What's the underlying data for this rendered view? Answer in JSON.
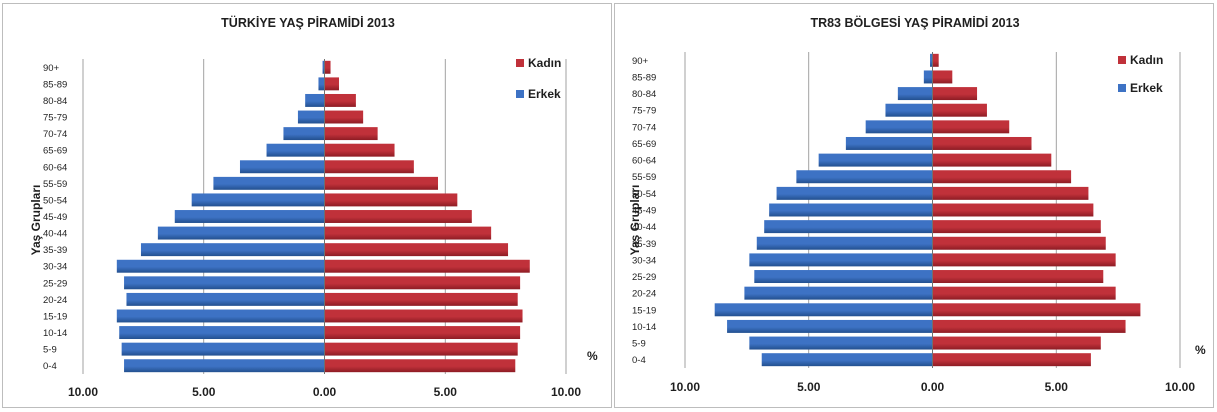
{
  "legend": {
    "female": "Kadın",
    "male": "Erkek"
  },
  "colors": {
    "female": "#c0313a",
    "female_dark": "#8d1c24",
    "male": "#3d72c4",
    "male_dark": "#23508f"
  },
  "unit": "%",
  "ylabel": "Yaş Grupları",
  "chart_data": [
    {
      "type": "bar",
      "orientation": "horizontal-pyramid",
      "title": "TÜRKİYE YAŞ PİRAMİDİ 2013",
      "ylabel": "Yaş Grupları",
      "xlabel": "%",
      "xlim": [
        -10,
        10
      ],
      "xticks": [
        -10,
        -5,
        0,
        5,
        10
      ],
      "xtick_labels": [
        "10.00",
        "5.00",
        "0.00",
        "5.00",
        "10.00"
      ],
      "grid": true,
      "legend_position": "top-right",
      "categories": [
        "0-4",
        "5-9",
        "10-14",
        "15-19",
        "20-24",
        "25-29",
        "30-34",
        "35-39",
        "40-44",
        "45-49",
        "50-54",
        "55-59",
        "60-64",
        "65-69",
        "70-74",
        "75-79",
        "80-84",
        "85-89",
        "90+"
      ],
      "series": [
        {
          "name": "Kadın",
          "values": [
            7.9,
            8.0,
            8.1,
            8.2,
            8.0,
            8.1,
            8.5,
            7.6,
            6.9,
            6.1,
            5.5,
            4.7,
            3.7,
            2.9,
            2.2,
            1.6,
            1.3,
            0.6,
            0.25
          ]
        },
        {
          "name": "Erkek",
          "values": [
            8.3,
            8.4,
            8.5,
            8.6,
            8.2,
            8.3,
            8.6,
            7.6,
            6.9,
            6.2,
            5.5,
            4.6,
            3.5,
            2.4,
            1.7,
            1.1,
            0.8,
            0.25,
            0.08
          ]
        }
      ]
    },
    {
      "type": "bar",
      "orientation": "horizontal-pyramid",
      "title": "TR83 BÖLGESİ YAŞ PİRAMİDİ 2013",
      "ylabel": "Yaş Grupları",
      "xlabel": "%",
      "xlim": [
        -10,
        10
      ],
      "xticks": [
        -10,
        -5,
        0,
        5,
        10
      ],
      "xtick_labels": [
        "10.00",
        "5.00",
        "0.00",
        "5.00",
        "10.00"
      ],
      "grid": true,
      "legend_position": "top-right",
      "categories": [
        "0-4",
        "5-9",
        "10-14",
        "15-19",
        "20-24",
        "25-29",
        "30-34",
        "35-39",
        "40-44",
        "45-49",
        "50-54",
        "55-59",
        "60-64",
        "65-69",
        "70-74",
        "75-79",
        "80-84",
        "85-89",
        "90+"
      ],
      "series": [
        {
          "name": "Kadın",
          "values": [
            6.4,
            6.8,
            7.8,
            8.4,
            7.4,
            6.9,
            7.4,
            7.0,
            6.8,
            6.5,
            6.3,
            5.6,
            4.8,
            4.0,
            3.1,
            2.2,
            1.8,
            0.8,
            0.25
          ]
        },
        {
          "name": "Erkek",
          "values": [
            6.9,
            7.4,
            8.3,
            8.8,
            7.6,
            7.2,
            7.4,
            7.1,
            6.8,
            6.6,
            6.3,
            5.5,
            4.6,
            3.5,
            2.7,
            1.9,
            1.4,
            0.35,
            0.1
          ]
        }
      ]
    }
  ]
}
